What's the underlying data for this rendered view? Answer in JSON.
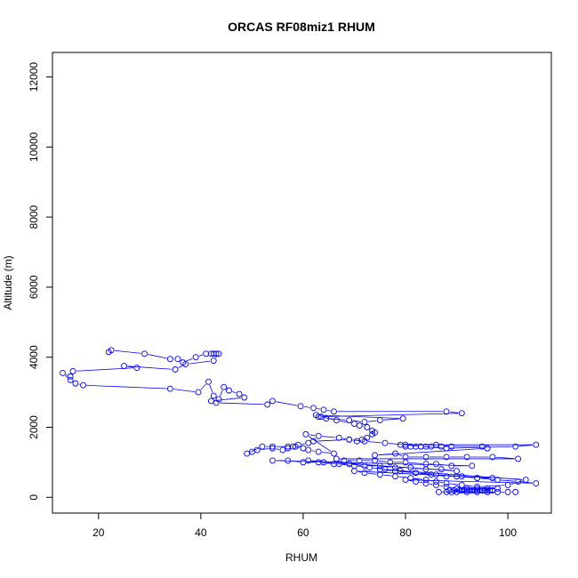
{
  "chart_data": {
    "type": "scatter",
    "title": "ORCAS RF08miz1 RHUM",
    "xlabel": "RHUM",
    "ylabel": "Altitude (m)",
    "xlim": [
      11,
      108.5
    ],
    "ylim": [
      -450,
      12700
    ],
    "x_ticks": [
      20,
      40,
      60,
      80,
      100
    ],
    "y_ticks": [
      0,
      2000,
      4000,
      6000,
      8000,
      10000,
      12000
    ],
    "grid": false,
    "colors": {
      "series": "#0000ff",
      "axis": "#000000"
    },
    "series": [
      {
        "style": "points-and-lines",
        "x": [
          22,
          22.5,
          29,
          34,
          35.5,
          36.5,
          39,
          41,
          42,
          42.5,
          43,
          43.5,
          42.5,
          37,
          35,
          25,
          27.5,
          15,
          14.5,
          13,
          14.5,
          15.5,
          17,
          34,
          39.5,
          41.5,
          42.5,
          43.5,
          44.5,
          45.5,
          47.5,
          48.5,
          42,
          43,
          53,
          54,
          59.5,
          62,
          64,
          66,
          88,
          91,
          63,
          64.5,
          69,
          72,
          75,
          79.5,
          62.5,
          63.5,
          66.5,
          70,
          71,
          72.5,
          73.5,
          74,
          73.5,
          72.5,
          71.5,
          70.5,
          69,
          62,
          61,
          59,
          58,
          57,
          56,
          54,
          51,
          50,
          49,
          52,
          54,
          57,
          58.5,
          60,
          61,
          63,
          66,
          60.5,
          63,
          67,
          69,
          72,
          76,
          80,
          83,
          88,
          101.5,
          105.5,
          79,
          80,
          81,
          82,
          83,
          84,
          85,
          86,
          87,
          89,
          95,
          96,
          74,
          78,
          80,
          84,
          88,
          92,
          97,
          102,
          66.5,
          68,
          71,
          74,
          77,
          80,
          84,
          86,
          89,
          93,
          54,
          57,
          60,
          63,
          66,
          69,
          72,
          75,
          78,
          81,
          84,
          87,
          90,
          61,
          64,
          67,
          70,
          73,
          76,
          79,
          82,
          85,
          88,
          91,
          94,
          97,
          70,
          72,
          75,
          78,
          81,
          84,
          86,
          88,
          91,
          94,
          100,
          103.5,
          75,
          78,
          82,
          86,
          90,
          94,
          98,
          102,
          105.5,
          80,
          82,
          84,
          86,
          88,
          90,
          92,
          94,
          96,
          98,
          88.5,
          89.5,
          90.5,
          91,
          91.5,
          92,
          92.5,
          93,
          93.5,
          94,
          94.5,
          95,
          95.5,
          96,
          96.5,
          97,
          86.5,
          88,
          89,
          90,
          92,
          94,
          96,
          98,
          100,
          101.5
        ],
        "y": [
          4150,
          4200,
          4100,
          3950,
          3950,
          3850,
          4000,
          4100,
          4100,
          4100,
          4100,
          4100,
          3900,
          3800,
          3650,
          3750,
          3700,
          3600,
          3450,
          3550,
          3350,
          3250,
          3200,
          3100,
          3000,
          3300,
          2900,
          2800,
          3150,
          3050,
          2950,
          2850,
          2750,
          2700,
          2650,
          2750,
          2600,
          2550,
          2500,
          2450,
          2450,
          2400,
          2300,
          2250,
          2200,
          2150,
          2200,
          2250,
          2350,
          2300,
          2200,
          2100,
          2050,
          2000,
          1900,
          1850,
          1800,
          1700,
          1650,
          1600,
          1650,
          1600,
          1550,
          1500,
          1450,
          1400,
          1350,
          1400,
          1350,
          1300,
          1250,
          1450,
          1450,
          1450,
          1450,
          1400,
          1350,
          1300,
          1250,
          1800,
          1750,
          1700,
          1650,
          1600,
          1550,
          1500,
          1450,
          1400,
          1450,
          1500,
          1500,
          1450,
          1450,
          1450,
          1450,
          1450,
          1450,
          1500,
          1450,
          1450,
          1450,
          1400,
          1200,
          1250,
          1150,
          1150,
          1150,
          1150,
          1150,
          1100,
          1100,
          1050,
          1050,
          1050,
          1000,
          1000,
          950,
          950,
          900,
          900,
          1050,
          1050,
          1000,
          1000,
          950,
          950,
          900,
          900,
          850,
          850,
          800,
          800,
          750,
          1050,
          1000,
          950,
          900,
          850,
          800,
          750,
          700,
          650,
          600,
          600,
          550,
          550,
          750,
          700,
          650,
          600,
          550,
          500,
          450,
          400,
          350,
          300,
          350,
          500,
          800,
          750,
          700,
          650,
          600,
          550,
          500,
          450,
          400,
          500,
          450,
          400,
          350,
          300,
          250,
          250,
          250,
          250,
          250,
          200,
          200,
          200,
          200,
          200,
          200,
          200,
          200,
          200,
          200,
          200,
          200,
          200,
          200,
          200,
          200,
          150,
          150,
          150,
          150,
          150,
          150,
          150,
          150,
          150,
          150
        ]
      }
    ]
  }
}
